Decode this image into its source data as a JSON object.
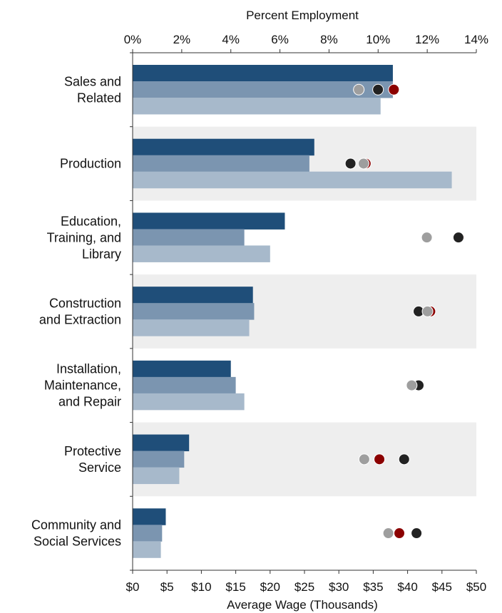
{
  "chart_data": {
    "type": "bar",
    "title": "",
    "top_axis": {
      "label": "Percent Employment",
      "range": [
        0,
        14
      ],
      "ticks": [
        0,
        2,
        4,
        6,
        8,
        10,
        12,
        14
      ],
      "tick_labels": [
        "0%",
        "2%",
        "4%",
        "6%",
        "8%",
        "10%",
        "12%",
        "14%"
      ]
    },
    "bottom_axis": {
      "label": "Average Wage (Thousands)",
      "range": [
        0,
        50
      ],
      "ticks": [
        0,
        5,
        10,
        15,
        20,
        25,
        30,
        35,
        40,
        45,
        50
      ],
      "tick_labels": [
        "$0",
        "$5",
        "$10",
        "$15",
        "$20",
        "$25",
        "$30",
        "$35",
        "$40",
        "$45",
        "$50"
      ]
    },
    "categories": [
      [
        "Sales and",
        "Related"
      ],
      [
        "Production"
      ],
      [
        "Education,",
        "Training, and",
        "Library"
      ],
      [
        "Construction",
        "and Extraction"
      ],
      [
        "Installation,",
        "Maintenance,",
        "and Repair"
      ],
      [
        "Protective",
        "Service"
      ],
      [
        "Community and",
        "Social Services"
      ]
    ],
    "bar_series": [
      {
        "color": "#1f4e79",
        "values": [
          10.6,
          7.4,
          6.2,
          4.9,
          4.0,
          2.3,
          1.35
        ]
      },
      {
        "color": "#7b95b0",
        "values": [
          10.6,
          7.2,
          4.55,
          4.95,
          4.2,
          2.1,
          1.2
        ]
      },
      {
        "color": "#a7b9cb",
        "values": [
          10.1,
          13.0,
          5.6,
          4.75,
          4.55,
          1.9,
          1.15
        ]
      }
    ],
    "dot_series": [
      {
        "color": "#8b0000",
        "values": [
          38.0,
          33.9,
          47.5,
          43.3,
          41.6,
          35.9,
          38.8
        ]
      },
      {
        "color": "#222222",
        "values": [
          35.7,
          31.7,
          47.4,
          41.6,
          41.6,
          39.5,
          41.3
        ]
      },
      {
        "color": "#9e9e9e",
        "values": [
          32.9,
          33.6,
          42.8,
          42.9,
          40.6,
          33.7,
          37.2
        ]
      }
    ],
    "grid": false,
    "band_shading": "alternating"
  }
}
